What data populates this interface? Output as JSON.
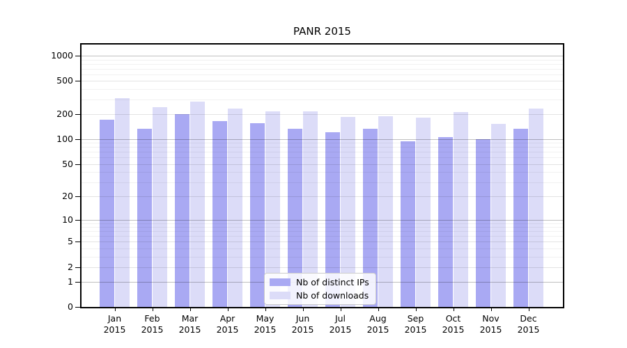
{
  "chart_data": {
    "type": "bar",
    "title": "PANR 2015",
    "categories": [
      "Jan 2015",
      "Feb 2015",
      "Mar 2015",
      "Apr 2015",
      "May 2015",
      "Jun 2015",
      "Jul 2015",
      "Aug 2015",
      "Sep 2015",
      "Oct 2015",
      "Nov 2015",
      "Dec 2015"
    ],
    "series": [
      {
        "name": "Nb of distinct IPs",
        "color": "#a9a9f3",
        "values": [
          170,
          133,
          200,
          165,
          157,
          133,
          122,
          133,
          95,
          106,
          100,
          134
        ]
      },
      {
        "name": "Nb of downloads",
        "color": "#dcdcf8",
        "values": [
          310,
          240,
          285,
          231,
          216,
          217,
          185,
          190,
          181,
          210,
          153,
          235
        ]
      }
    ],
    "xlabel": "",
    "ylabel": "",
    "yscale": "symlog",
    "yticks": [
      0,
      1,
      2,
      5,
      10,
      20,
      50,
      100,
      200,
      500,
      1000
    ],
    "ylim": [
      0,
      1360
    ],
    "grid": "both",
    "legend_position": "lower center"
  }
}
